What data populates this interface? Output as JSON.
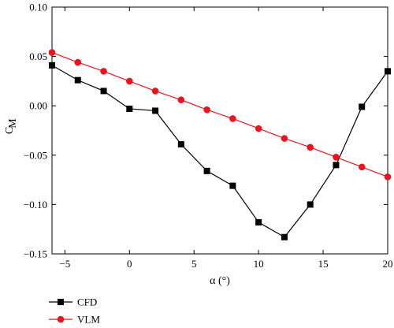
{
  "chart_data": {
    "type": "line",
    "xlabel": "α (°)",
    "ylabel_main": "C",
    "ylabel_sub": "M",
    "xlim": [
      -6,
      20
    ],
    "ylim": [
      -0.15,
      0.1
    ],
    "xticks": [
      -5,
      0,
      5,
      10,
      15,
      20
    ],
    "xtick_labels": [
      "−5",
      "0",
      "5",
      "10",
      "15",
      "20"
    ],
    "yticks": [
      0.1,
      0.05,
      0.0,
      -0.05,
      -0.1,
      -0.15
    ],
    "ytick_labels": [
      "0.10",
      "0.05",
      "0.00",
      "−0.05",
      "−0.10",
      "−0.15"
    ],
    "grid": false,
    "legend_position": "below-left",
    "series": [
      {
        "name": "CFD",
        "color": "#000000",
        "marker": "square",
        "x": [
          -6,
          -4,
          -2,
          0,
          2,
          4,
          6,
          8,
          10,
          12,
          14,
          16,
          18,
          20
        ],
        "y": [
          0.041,
          0.026,
          0.015,
          -0.003,
          -0.005,
          -0.039,
          -0.066,
          -0.081,
          -0.118,
          -0.133,
          -0.1,
          -0.06,
          -0.001,
          0.035
        ]
      },
      {
        "name": "VLM",
        "color": "#e8141e",
        "marker": "circle",
        "x": [
          -6,
          -4,
          -2,
          0,
          2,
          4,
          6,
          8,
          10,
          12,
          14,
          16,
          18,
          20
        ],
        "y": [
          0.054,
          0.044,
          0.035,
          0.025,
          0.015,
          0.006,
          -0.004,
          -0.013,
          -0.023,
          -0.033,
          -0.042,
          -0.052,
          -0.062,
          -0.072
        ]
      }
    ]
  }
}
